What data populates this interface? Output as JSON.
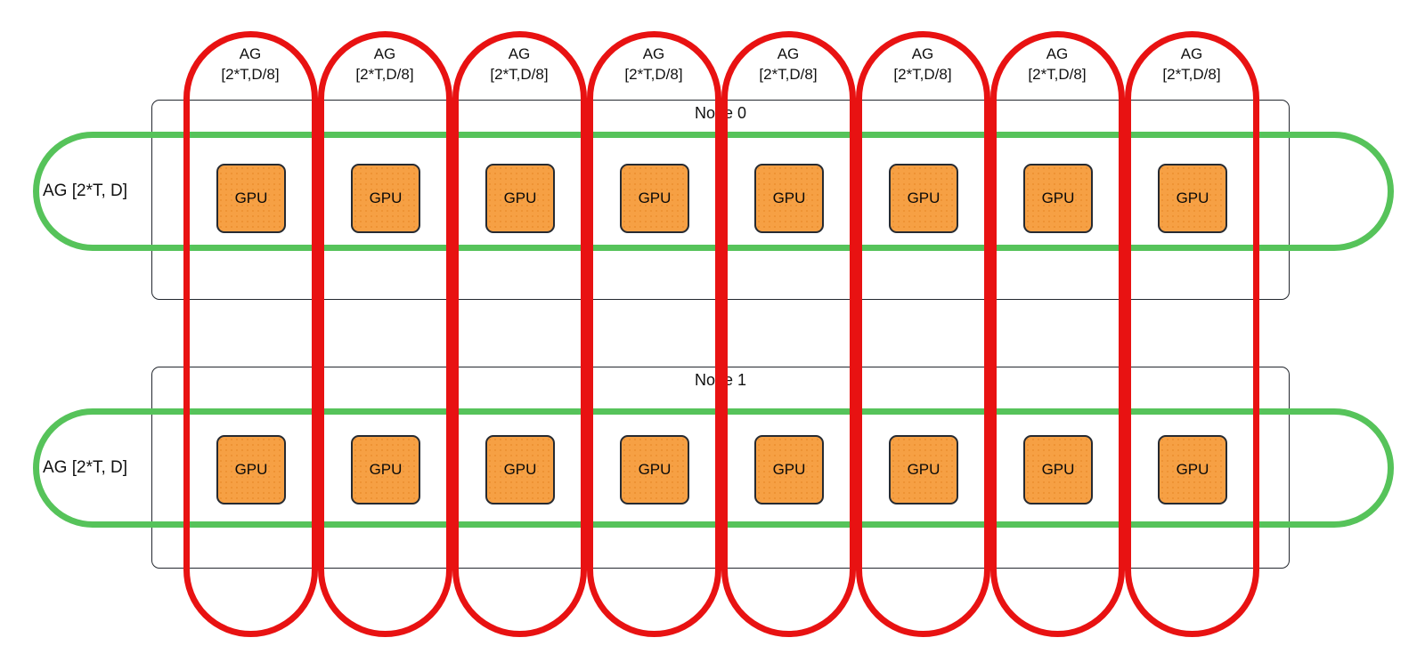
{
  "diagram": {
    "colors": {
      "background": "#ffffff",
      "red": "#e81212",
      "green": "#56c35a",
      "orange": "#f6a044",
      "orange_dot": "#ed9233",
      "node_border": "#23272e",
      "gpu_border": "#262a31",
      "text": "#111111"
    },
    "red_pills": {
      "count": 8,
      "label_line1": "AG",
      "label_line2": "[2*T,D/8]"
    },
    "green_pills": {
      "count": 2,
      "label": "AG [2*T, D]"
    },
    "nodes": [
      {
        "label": "Node 0"
      },
      {
        "label": "Node 1"
      }
    ],
    "gpus_per_node": 8,
    "gpu_label": "GPU"
  }
}
